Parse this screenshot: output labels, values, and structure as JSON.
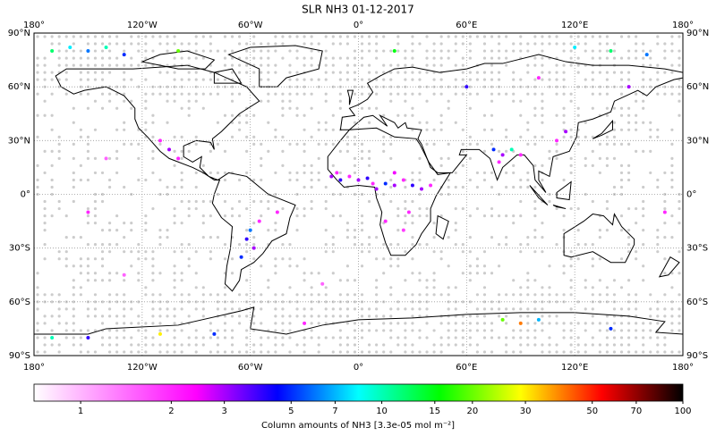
{
  "chart_data": {
    "type": "map",
    "title": "SLR NH3 01-12-2017",
    "colorbar_label": "Column amounts of NH3 [3.3e-05 mol m⁻²]",
    "xlim": [
      -180,
      180
    ],
    "ylim": [
      -90,
      90
    ],
    "xticks": [
      {
        "value": -180,
        "label": "180°"
      },
      {
        "value": -120,
        "label": "120°W"
      },
      {
        "value": -60,
        "label": "60°W"
      },
      {
        "value": 0,
        "label": "0°"
      },
      {
        "value": 60,
        "label": "60°E"
      },
      {
        "value": 120,
        "label": "120°E"
      },
      {
        "value": 180,
        "label": "180°"
      }
    ],
    "yticks": [
      {
        "value": 90,
        "label": "90°N"
      },
      {
        "value": 60,
        "label": "60°N"
      },
      {
        "value": 30,
        "label": "30°N"
      },
      {
        "value": 0,
        "label": "0°"
      },
      {
        "value": -30,
        "label": "30°S"
      },
      {
        "value": -60,
        "label": "60°S"
      },
      {
        "value": -90,
        "label": "90°S"
      }
    ],
    "grid": true,
    "log_scale": true,
    "clim": [
      0.7,
      100
    ],
    "cticks": [
      1,
      2,
      3,
      5,
      7,
      10,
      15,
      20,
      30,
      50,
      70,
      100
    ],
    "colormap": [
      "#ffffff",
      "#ff80ff",
      "#ff00ff",
      "#0000ff",
      "#00ffff",
      "#00ff00",
      "#ffff00",
      "#ff0000",
      "#000000"
    ],
    "no_data_color": "#cccccc",
    "lon": [
      -15,
      -10,
      -5,
      0,
      5,
      8,
      10,
      15,
      20,
      25,
      30,
      35,
      40,
      -12,
      20,
      28,
      25,
      15,
      75,
      80,
      85,
      78,
      90,
      115,
      110,
      -60,
      -62,
      -58,
      -55,
      -45,
      -65,
      -170,
      -160,
      -150,
      -140,
      -130,
      -100,
      120,
      140,
      160,
      150,
      100,
      60,
      20,
      -105,
      -100,
      -110,
      -170,
      -150,
      -110,
      -80,
      80,
      90,
      100,
      140,
      -30,
      -150,
      -130,
      -140,
      170,
      -20
    ],
    "lat": [
      10,
      8,
      10,
      8,
      9,
      6,
      3,
      6,
      5,
      8,
      5,
      3,
      5,
      12,
      12,
      -10,
      -20,
      -15,
      25,
      22,
      25,
      18,
      22,
      35,
      30,
      -20,
      -25,
      -30,
      -15,
      -10,
      -35,
      80,
      82,
      80,
      82,
      78,
      80,
      82,
      80,
      78,
      60,
      65,
      60,
      80,
      25,
      20,
      30,
      -80,
      -80,
      -78,
      -78,
      -70,
      -72,
      -70,
      -75,
      -72,
      -10,
      -45,
      20,
      -10,
      -50
    ],
    "values": [
      3,
      4,
      2,
      3,
      4,
      2,
      3,
      5,
      3,
      2,
      4,
      3,
      2,
      2,
      2.5,
      2,
      1.8,
      2,
      5,
      3,
      10,
      2,
      2,
      3,
      2,
      6,
      4,
      3,
      2,
      2,
      5,
      12,
      8,
      6,
      10,
      5,
      20,
      8,
      12,
      6,
      3,
      2,
      4,
      15,
      3,
      2,
      2,
      10,
      4,
      30,
      5,
      20,
      40,
      7,
      5,
      2,
      2,
      1.5,
      1.5,
      2,
      1.5
    ]
  }
}
